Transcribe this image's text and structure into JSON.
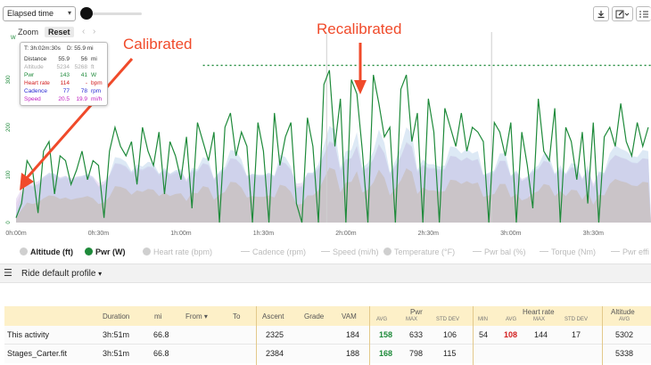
{
  "toolbar": {
    "x_axis_select": "Elapsed time",
    "zoom_label": "Zoom",
    "reset_label": "Reset",
    "colors": {
      "accent": "#1e8a3a"
    },
    "right_icons": [
      "download-icon",
      "edit-icon",
      "list-icon"
    ]
  },
  "chart_data": {
    "type": "area",
    "x_ticks": [
      "0h:00m",
      "0h:30m",
      "1h:00m",
      "1h:30m",
      "2h:00m",
      "2h:30m",
      "3h:00m",
      "3h:30m"
    ],
    "y_ticks": [
      "0",
      "100",
      "200",
      "300"
    ],
    "y_axis_unit": "W",
    "ylim": [
      0,
      400
    ],
    "xlim_minutes": [
      0,
      231
    ],
    "reference_line_w": 330,
    "markers_minutes": [
      113,
      173
    ],
    "series": [
      {
        "name": "Pwr (W)",
        "color": "#1e8a3a",
        "x_minutes": [
          0,
          2,
          4,
          6,
          8,
          10,
          12,
          14,
          16,
          18,
          20,
          22,
          24,
          26,
          28,
          30,
          32,
          34,
          36,
          38,
          40,
          42,
          44,
          46,
          48,
          50,
          52,
          54,
          56,
          58,
          60,
          62,
          64,
          66,
          68,
          70,
          72,
          74,
          76,
          78,
          80,
          82,
          84,
          86,
          88,
          90,
          92,
          94,
          96,
          98,
          100,
          102,
          104,
          106,
          108,
          110,
          112,
          114,
          116,
          118,
          120,
          122,
          124,
          126,
          128,
          130,
          132,
          134,
          136,
          138,
          140,
          142,
          144,
          146,
          148,
          150,
          152,
          154,
          156,
          158,
          160,
          162,
          164,
          166,
          168,
          170,
          172,
          174,
          176,
          178,
          180,
          182,
          184,
          186,
          188,
          190,
          192,
          194,
          196,
          198,
          200,
          202,
          204,
          206,
          208,
          210,
          212,
          214,
          216,
          218,
          220,
          222,
          224,
          226,
          228,
          230
        ],
        "values": [
          10,
          40,
          130,
          110,
          20,
          150,
          170,
          60,
          140,
          130,
          80,
          110,
          150,
          90,
          130,
          120,
          10,
          150,
          200,
          160,
          140,
          170,
          80,
          200,
          150,
          120,
          190,
          60,
          170,
          140,
          90,
          180,
          30,
          210,
          170,
          130,
          190,
          0,
          200,
          230,
          140,
          190,
          160,
          0,
          210,
          150,
          0,
          230,
          120,
          180,
          210,
          40,
          0,
          220,
          160,
          0,
          290,
          320,
          160,
          260,
          0,
          300,
          270,
          150,
          0,
          310,
          250,
          180,
          200,
          0,
          280,
          310,
          170,
          230,
          0,
          260,
          190,
          0,
          240,
          200,
          160,
          230,
          150,
          200,
          190,
          170,
          0,
          210,
          190,
          140,
          210,
          0,
          190,
          120,
          30,
          260,
          150,
          130,
          240,
          0,
          200,
          170,
          90,
          190,
          40,
          210,
          0,
          180,
          200,
          160,
          250,
          170,
          140,
          210,
          160,
          200
        ]
      },
      {
        "name": "Altitude (ft)",
        "color": "#c9c2c2"
      },
      {
        "name": "Heart rate (bpm)",
        "color": "#e6d3df"
      },
      {
        "name": "Cadence (rpm)",
        "color": "#b3cfe8"
      },
      {
        "name": "Speed (mi/h)",
        "color": "#d9c8ee"
      }
    ]
  },
  "tooltip": {
    "time_label": "T: 3h:02m:30s",
    "distance_label": "D: 55.9 mi",
    "rows": [
      {
        "label": "Distance",
        "v1": "55.9",
        "v2": "56",
        "unit": "mi",
        "color": "#333"
      },
      {
        "label": "Altitude",
        "v1": "5234",
        "v2": "5268",
        "unit": "ft",
        "color": "#aaa"
      },
      {
        "label": "Pwr",
        "v1": "143",
        "v2": "41",
        "unit": "W",
        "color": "#1e8a3a"
      },
      {
        "label": "Heart rate",
        "v1": "114",
        "v2": "-",
        "unit": "bpm",
        "color": "#d21e1e"
      },
      {
        "label": "Cadence",
        "v1": "77",
        "v2": "78",
        "unit": "rpm",
        "color": "#2a2ad2"
      },
      {
        "label": "Speed",
        "v1": "20.5",
        "v2": "19.9",
        "unit": "mi/h",
        "color": "#c020c0"
      }
    ]
  },
  "annotations": {
    "calibrated": "Calibrated",
    "recalibrated": "Recalibrated",
    "color": "#f04a2a"
  },
  "legend": [
    {
      "label": "Altitude (ft)",
      "on": true,
      "marker": "dot",
      "color": "#cfcfcf"
    },
    {
      "label": "Pwr (W)",
      "on": true,
      "marker": "dot",
      "color": "#1e8a3a"
    },
    {
      "label": "Heart rate (bpm)",
      "on": false,
      "marker": "dot",
      "color": "#cfcfcf"
    },
    {
      "label": "Cadence (rpm)",
      "on": false,
      "marker": "dash",
      "color": "#cfcfcf"
    },
    {
      "label": "Speed (mi/h)",
      "on": false,
      "marker": "dash",
      "color": "#cfcfcf"
    },
    {
      "label": "Temperature (°F)",
      "on": false,
      "marker": "dot",
      "color": "#cfcfcf"
    },
    {
      "label": "Pwr bal (%)",
      "on": false,
      "marker": "dash",
      "color": "#cfcfcf"
    },
    {
      "label": "Torque (Nm)",
      "on": false,
      "marker": "dash",
      "color": "#cfcfcf"
    },
    {
      "label": "Pwr effi",
      "on": false,
      "marker": "dash",
      "color": "#cfcfcf"
    }
  ],
  "profile": {
    "label": "Ride default profile"
  },
  "table": {
    "group_headers": {
      "pwr": "Pwr",
      "heart_rate": "Heart rate",
      "altitude": "Altitude"
    },
    "columns": {
      "duration": "Duration",
      "mi": "mi",
      "from": "From",
      "to": "To",
      "ascent": "Ascent",
      "grade": "Grade",
      "vam": "VAM",
      "pwr_avg": "AVG",
      "pwr_max": "MAX",
      "pwr_std": "STD DEV",
      "hr_min": "MIN",
      "hr_avg": "AVG",
      "hr_max": "MAX",
      "hr_std": "STD DEV",
      "alt_avg": "AVG"
    },
    "rows": [
      {
        "name": "This activity",
        "duration": "3h:51m",
        "mi": "66.8",
        "ascent": "2325",
        "vam": "184",
        "pwr_avg": "158",
        "pwr_max": "633",
        "pwr_std": "106",
        "hr_min": "54",
        "hr_avg": "108",
        "hr_max": "144",
        "hr_std": "17",
        "alt_avg": "5302"
      },
      {
        "name": "Stages_Carter.fit",
        "duration": "3h:51m",
        "mi": "66.8",
        "ascent": "2384",
        "vam": "188",
        "pwr_avg": "168",
        "pwr_max": "798",
        "pwr_std": "115",
        "hr_min": "",
        "hr_avg": "",
        "hr_max": "",
        "hr_std": "",
        "alt_avg": "5338"
      }
    ]
  }
}
